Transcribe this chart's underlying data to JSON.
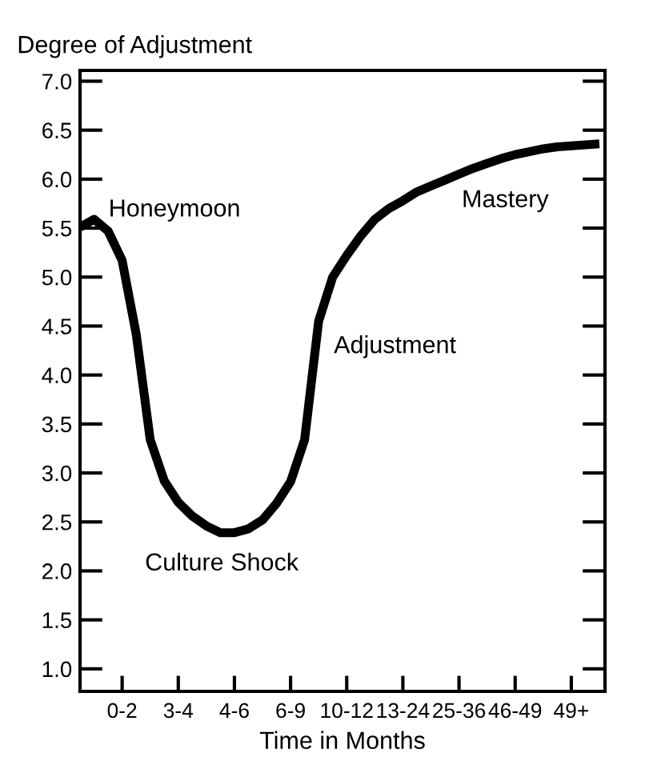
{
  "chart_data": {
    "type": "line",
    "xlabel": "Time in Months",
    "ylabel": "Degree of Adjustment",
    "ylim": [
      0.77,
      7.11
    ],
    "yticks": [
      {
        "value": 1,
        "label": "1.0"
      },
      {
        "value": 1.5,
        "label": "1.5"
      },
      {
        "value": 2,
        "label": "2.0"
      },
      {
        "value": 2.5,
        "label": "2.5"
      },
      {
        "value": 3,
        "label": "3.0"
      },
      {
        "value": 3.5,
        "label": "3.5"
      },
      {
        "value": 4,
        "label": "4.0"
      },
      {
        "value": 4.5,
        "label": "4.5"
      },
      {
        "value": 5,
        "label": "5.0"
      },
      {
        "value": 5.5,
        "label": "5.5"
      },
      {
        "value": 6,
        "label": "6.0"
      },
      {
        "value": 6.5,
        "label": "6.5"
      },
      {
        "value": 7,
        "label": "7.0"
      }
    ],
    "grid": false,
    "legend": false,
    "marker": "none",
    "line_style": "solid",
    "categories": [
      null,
      null,
      null,
      "0-2",
      null,
      null,
      null,
      "3-4",
      null,
      null,
      null,
      "4-6",
      null,
      null,
      null,
      "6-9",
      null,
      null,
      null,
      "10-12",
      null,
      null,
      null,
      "13-24",
      null,
      null,
      null,
      "25-36",
      null,
      null,
      null,
      "46-49",
      null,
      null,
      null,
      "49+",
      null,
      null
    ],
    "series": [
      {
        "color": "#000000",
        "values": [
          5.51,
          5.59,
          5.47,
          5.17,
          4.42,
          3.34,
          2.92,
          2.7,
          2.56,
          2.46,
          2.39,
          2.39,
          2.43,
          2.52,
          2.69,
          2.91,
          3.34,
          4.55,
          5.0,
          5.22,
          5.42,
          5.59,
          5.7,
          5.78,
          5.87,
          5.93,
          5.99,
          6.05,
          6.11,
          6.16,
          6.21,
          6.25,
          6.28,
          6.31,
          6.33,
          6.34,
          6.35,
          6.36
        ]
      }
    ],
    "annotations": [
      "Honeymoon",
      "Culture Shock",
      "Adjustment",
      "Mastery"
    ]
  }
}
